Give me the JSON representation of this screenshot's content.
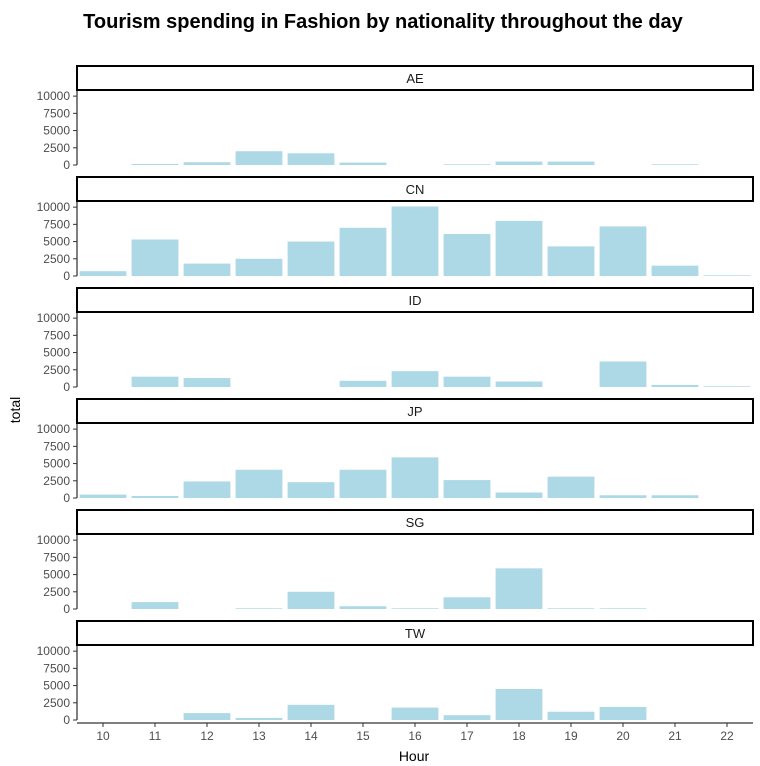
{
  "chart_data": {
    "type": "bar",
    "title": "Tourism spending in Fashion by nationality throughout the day",
    "xlabel": "Hour",
    "ylabel": "total",
    "categories": [
      "10",
      "11",
      "12",
      "13",
      "14",
      "15",
      "16",
      "17",
      "18",
      "19",
      "20",
      "21",
      "22"
    ],
    "y_ticks": [
      0,
      2500,
      5000,
      7500,
      10000
    ],
    "y_tick_labels": [
      "0",
      "2500",
      "5000",
      "7500",
      "10000"
    ],
    "ylim": [
      0,
      10600
    ],
    "bar_color": "#add8e6",
    "grid": false,
    "facets": [
      "AE",
      "CN",
      "ID",
      "JP",
      "SG",
      "TW"
    ],
    "series": [
      {
        "name": "AE",
        "values": [
          null,
          150,
          400,
          2000,
          1700,
          350,
          null,
          100,
          500,
          500,
          null,
          100,
          null
        ]
      },
      {
        "name": "CN",
        "values": [
          700,
          5300,
          1800,
          2500,
          5000,
          7000,
          10100,
          6100,
          8000,
          4300,
          7200,
          1500,
          100
        ]
      },
      {
        "name": "ID",
        "values": [
          null,
          1500,
          1300,
          null,
          null,
          900,
          2300,
          1500,
          800,
          null,
          3700,
          300,
          100
        ]
      },
      {
        "name": "JP",
        "values": [
          500,
          300,
          2400,
          4100,
          2300,
          4100,
          5900,
          2600,
          800,
          3100,
          400,
          400,
          null
        ]
      },
      {
        "name": "SG",
        "values": [
          null,
          1000,
          null,
          100,
          2500,
          400,
          100,
          1700,
          5900,
          100,
          100,
          null,
          null
        ]
      },
      {
        "name": "TW",
        "values": [
          null,
          null,
          1000,
          300,
          2200,
          null,
          1800,
          700,
          4500,
          1200,
          1900,
          null,
          null
        ]
      }
    ]
  }
}
